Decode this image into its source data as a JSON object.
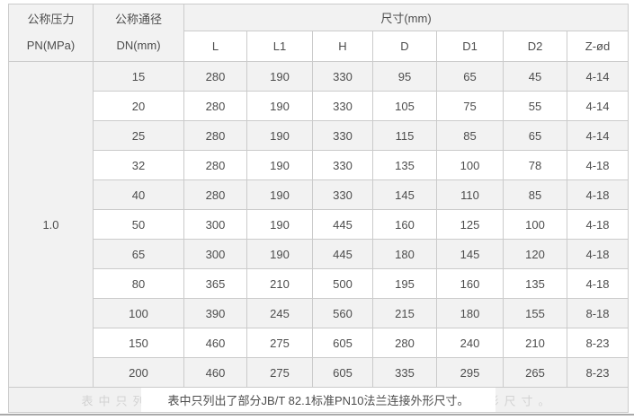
{
  "table": {
    "header": {
      "pn": {
        "line1": "公称压力",
        "line2": "PN(MPa)"
      },
      "dn": {
        "line1": "公称通径",
        "line2": "DN(mm)"
      },
      "size_group": "尺寸(mm)",
      "size_columns": [
        "L",
        "L1",
        "H",
        "D",
        "D1",
        "D2",
        "Z-ød"
      ]
    },
    "pn_value": "1.0",
    "rows": [
      {
        "dn": "15",
        "values": [
          "280",
          "190",
          "330",
          "95",
          "65",
          "45",
          "4-14"
        ]
      },
      {
        "dn": "20",
        "values": [
          "280",
          "190",
          "330",
          "105",
          "75",
          "55",
          "4-14"
        ]
      },
      {
        "dn": "25",
        "values": [
          "280",
          "190",
          "330",
          "115",
          "85",
          "65",
          "4-14"
        ]
      },
      {
        "dn": "32",
        "values": [
          "280",
          "190",
          "330",
          "135",
          "100",
          "78",
          "4-18"
        ]
      },
      {
        "dn": "40",
        "values": [
          "280",
          "190",
          "330",
          "145",
          "110",
          "85",
          "4-18"
        ]
      },
      {
        "dn": "50",
        "values": [
          "300",
          "190",
          "445",
          "160",
          "125",
          "100",
          "4-18"
        ]
      },
      {
        "dn": "65",
        "values": [
          "300",
          "190",
          "445",
          "180",
          "145",
          "120",
          "4-18"
        ]
      },
      {
        "dn": "80",
        "values": [
          "365",
          "210",
          "500",
          "195",
          "160",
          "135",
          "4-18"
        ]
      },
      {
        "dn": "100",
        "values": [
          "390",
          "245",
          "560",
          "215",
          "180",
          "155",
          "8-18"
        ]
      },
      {
        "dn": "150",
        "values": [
          "460",
          "275",
          "605",
          "280",
          "240",
          "210",
          "8-23"
        ]
      },
      {
        "dn": "200",
        "values": [
          "460",
          "275",
          "605",
          "335",
          "295",
          "265",
          "8-23"
        ]
      }
    ],
    "footnote": "表中只列出了部分JB/T 82.1标准PN10法兰连接外形尺寸。",
    "footnote_ghost": "表中只列出了部分JB/T 82.1标准PN10法兰连接外形尺寸。"
  },
  "colors": {
    "stripe_bg": "#f2f2f2",
    "cell_border": "#cbcbcb",
    "outer_border": "#a9a9a9",
    "text": "#4d4d4d",
    "footnote_band": "#ffffff"
  }
}
